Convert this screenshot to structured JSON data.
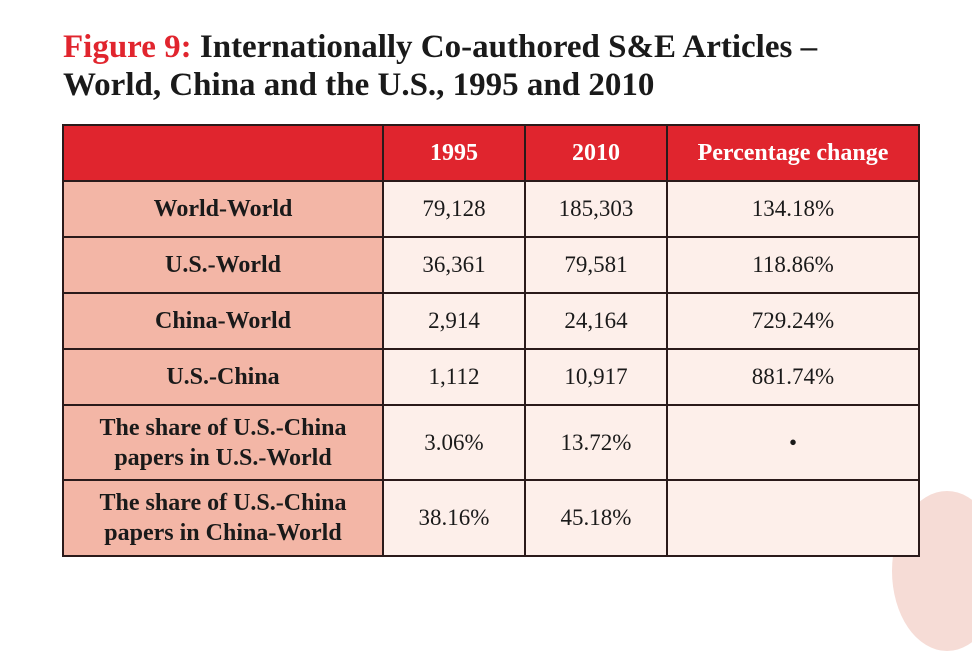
{
  "title": {
    "label": "Figure 9:",
    "line1": " Internationally Co-authored S&E Articles –",
    "line2": "World, China and the U.S., 1995 and 2010"
  },
  "table": {
    "headers": [
      "",
      "1995",
      "2010",
      "Percentage change"
    ],
    "rows": [
      {
        "label": "World-World",
        "v1995": "79,128",
        "v2010": "185,303",
        "change": "134.18%"
      },
      {
        "label": "U.S.-World",
        "v1995": "36,361",
        "v2010": "79,581",
        "change": "118.86%"
      },
      {
        "label": "China-World",
        "v1995": "2,914",
        "v2010": "24,164",
        "change": "729.24%"
      },
      {
        "label": "U.S.-China",
        "v1995": "1,112",
        "v2010": "10,917",
        "change": "881.74%"
      },
      {
        "label_line1": "The share of U.S.-China",
        "label_line2": "papers in U.S.-World",
        "v1995": "3.06%",
        "v2010": "13.72%",
        "change": "•"
      },
      {
        "label_line1": "The share of U.S.-China",
        "label_line2": "papers in China-World",
        "v1995": "38.16%",
        "v2010": "45.18%",
        "change": ""
      }
    ]
  },
  "colors": {
    "accent_red": "#e0252e",
    "row_header_salmon": "#f3b6a6",
    "cell_pink": "#fdefea",
    "border": "#2a1a1a"
  }
}
